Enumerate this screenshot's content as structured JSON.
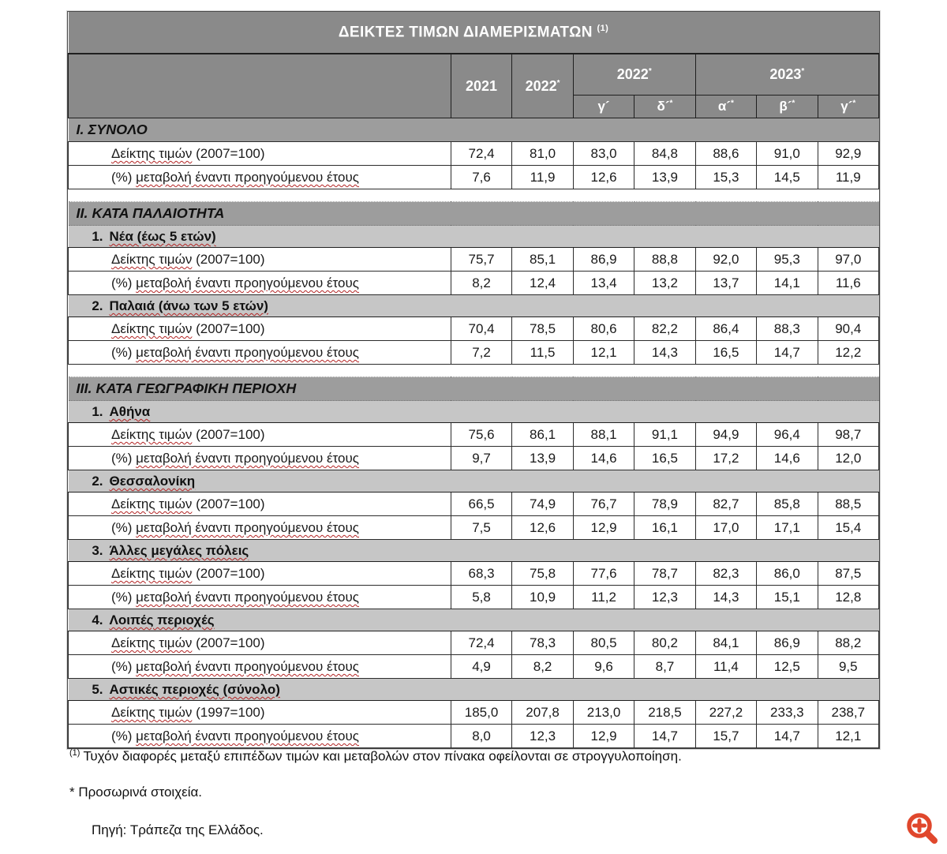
{
  "title": {
    "text": "ΔΕΙΚΤΕΣ ΤΙΜΩΝ ΔΙΑΜΕΡΙΣΜΑΤΩΝ",
    "sup": "(1)"
  },
  "colors": {
    "header_gray": "#8a8a8a",
    "section_gray": "#9d9d9d",
    "subsection_gray": "#c6c6c6",
    "squiggle_red": "#b32424",
    "zoom_icon_orange": "#e0472c"
  },
  "header": {
    "year_2021": {
      "text": "2021",
      "sup": ""
    },
    "year_2022": {
      "text": "2022",
      "sup": "*"
    },
    "group_2022": {
      "text": "2022",
      "sup": "*"
    },
    "group_2023": {
      "text": "2023",
      "sup": "*"
    },
    "quarters": [
      {
        "text": "γ´",
        "sup": ""
      },
      {
        "text": "δ´",
        "sup": "*"
      },
      {
        "text": "α´",
        "sup": "*"
      },
      {
        "text": "β´",
        "sup": "*"
      },
      {
        "text": "γ´",
        "sup": "*"
      }
    ]
  },
  "table": {
    "sections": [
      {
        "heading": "Ι. ΣΥΝΟΛΟ",
        "groups": [
          {
            "subheading": null,
            "rows": [
              {
                "label_pre": "",
                "label_wavy": "Δείκτης τιμών",
                "label_post": " (2007=100)",
                "values": [
                  "72,4",
                  "81,0",
                  "83,0",
                  "84,8",
                  "88,6",
                  "91,0",
                  "92,9"
                ]
              },
              {
                "label_pre": "(%) ",
                "label_wavy": "μεταβολή έναντι προηγούμενου έτους",
                "label_post": "",
                "values": [
                  "7,6",
                  "11,9",
                  "12,6",
                  "13,9",
                  "15,3",
                  "14,5",
                  "11,9"
                ]
              }
            ]
          }
        ]
      },
      {
        "heading": "ΙΙ. ΚΑΤΑ ΠΑΛΑΙΟΤΗΤΑ",
        "groups": [
          {
            "subheading": {
              "num": "1.",
              "name": "Νέα (έως 5 ετών)"
            },
            "rows": [
              {
                "label_pre": "",
                "label_wavy": "Δείκτης τιμών",
                "label_post": " (2007=100)",
                "values": [
                  "75,7",
                  "85,1",
                  "86,9",
                  "88,8",
                  "92,0",
                  "95,3",
                  "97,0"
                ]
              },
              {
                "label_pre": "(%) ",
                "label_wavy": "μεταβολή έναντι προηγούμενου έτους",
                "label_post": "",
                "values": [
                  "8,2",
                  "12,4",
                  "13,4",
                  "13,2",
                  "13,7",
                  "14,1",
                  "11,6"
                ]
              }
            ]
          },
          {
            "subheading": {
              "num": "2.",
              "name": "Παλαιά (άνω των 5 ετών)"
            },
            "rows": [
              {
                "label_pre": "",
                "label_wavy": "Δείκτης τιμών",
                "label_post": " (2007=100)",
                "values": [
                  "70,4",
                  "78,5",
                  "80,6",
                  "82,2",
                  "86,4",
                  "88,3",
                  "90,4"
                ]
              },
              {
                "label_pre": "(%) ",
                "label_wavy": "μεταβολή έναντι προηγούμενου έτους",
                "label_post": "",
                "values": [
                  "7,2",
                  "11,5",
                  "12,1",
                  "14,3",
                  "16,5",
                  "14,7",
                  "12,2"
                ]
              }
            ]
          }
        ]
      },
      {
        "heading": "ΙΙΙ. ΚΑΤΑ ΓΕΩΓΡΑΦΙΚΗ ΠΕΡΙΟΧΗ",
        "groups": [
          {
            "subheading": {
              "num": "1.",
              "name": "Αθήνα"
            },
            "rows": [
              {
                "label_pre": "",
                "label_wavy": "Δείκτης τιμών",
                "label_post": " (2007=100)",
                "values": [
                  "75,6",
                  "86,1",
                  "88,1",
                  "91,1",
                  "94,9",
                  "96,4",
                  "98,7"
                ]
              },
              {
                "label_pre": "(%) ",
                "label_wavy": "μεταβολή έναντι προηγούμενου έτους",
                "label_post": "",
                "values": [
                  "9,7",
                  "13,9",
                  "14,6",
                  "16,5",
                  "17,2",
                  "14,6",
                  "12,0"
                ]
              }
            ]
          },
          {
            "subheading": {
              "num": "2.",
              "name": "Θεσσαλονίκη"
            },
            "rows": [
              {
                "label_pre": "",
                "label_wavy": "Δείκτης τιμών",
                "label_post": " (2007=100)",
                "values": [
                  "66,5",
                  "74,9",
                  "76,7",
                  "78,9",
                  "82,7",
                  "85,8",
                  "88,5"
                ]
              },
              {
                "label_pre": "(%) ",
                "label_wavy": "μεταβολή έναντι προηγούμενου έτους",
                "label_post": "",
                "values": [
                  "7,5",
                  "12,6",
                  "12,9",
                  "16,1",
                  "17,0",
                  "17,1",
                  "15,4"
                ]
              }
            ]
          },
          {
            "subheading": {
              "num": "3.",
              "name": "Άλλες μεγάλες πόλεις"
            },
            "rows": [
              {
                "label_pre": "",
                "label_wavy": "Δείκτης τιμών",
                "label_post": " (2007=100)",
                "values": [
                  "68,3",
                  "75,8",
                  "77,6",
                  "78,7",
                  "82,3",
                  "86,0",
                  "87,5"
                ]
              },
              {
                "label_pre": "(%) ",
                "label_wavy": "μεταβολή έναντι προηγούμενου έτους",
                "label_post": "",
                "values": [
                  "5,8",
                  "10,9",
                  "11,2",
                  "12,3",
                  "14,3",
                  "15,1",
                  "12,8"
                ]
              }
            ]
          },
          {
            "subheading": {
              "num": "4.",
              "name": "Λοιπές περιοχές"
            },
            "rows": [
              {
                "label_pre": "",
                "label_wavy": "Δείκτης τιμών",
                "label_post": " (2007=100)",
                "values": [
                  "72,4",
                  "78,3",
                  "80,5",
                  "80,2",
                  "84,1",
                  "86,9",
                  "88,2"
                ]
              },
              {
                "label_pre": "(%) ",
                "label_wavy": "μεταβολή έναντι προηγούμενου έτους",
                "label_post": "",
                "values": [
                  "4,9",
                  "8,2",
                  "9,6",
                  "8,7",
                  "11,4",
                  "12,5",
                  "9,5"
                ]
              }
            ]
          },
          {
            "subheading": {
              "num": "5.",
              "name": "Αστικές περιοχές (σύνολο)"
            },
            "rows": [
              {
                "label_pre": "",
                "label_wavy": "Δείκτης τιμών",
                "label_post": " (1997=100)",
                "values": [
                  "185,0",
                  "207,8",
                  "213,0",
                  "218,5",
                  "227,2",
                  "233,3",
                  "238,7"
                ]
              },
              {
                "label_pre": "(%) ",
                "label_wavy": "μεταβολή έναντι προηγούμενου έτους",
                "label_post": "",
                "values": [
                  "8,0",
                  "12,3",
                  "12,9",
                  "14,7",
                  "15,7",
                  "14,7",
                  "12,1"
                ]
              }
            ]
          }
        ]
      }
    ]
  },
  "footnotes": {
    "note1_sup": "(1)",
    "note1_text": "Τυχόν διαφορές μεταξύ επιπέδων τιμών και μεταβολών στον πίνακα οφείλονται σε στρογγυλοποίηση.",
    "note2": "* Προσωρινά στοιχεία.",
    "source": "Πηγή: Τράπεζα της Ελλάδος."
  },
  "icons": {
    "zoom_in": "zoom-in-magnifier-plus"
  }
}
